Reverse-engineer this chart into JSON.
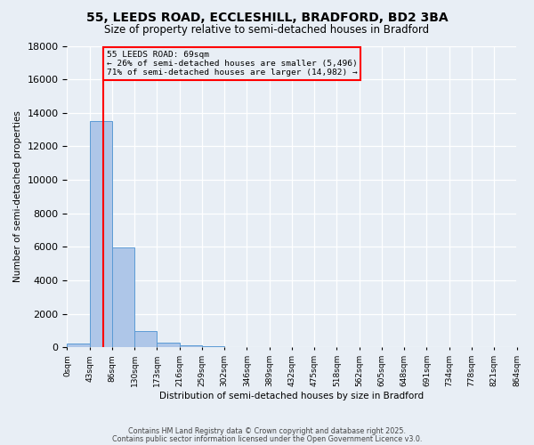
{
  "title": "55, LEEDS ROAD, ECCLESHILL, BRADFORD, BD2 3BA",
  "subtitle": "Size of property relative to semi-detached houses in Bradford",
  "xlabel": "Distribution of semi-detached houses by size in Bradford",
  "ylabel": "Number of semi-detached properties",
  "bin_labels": [
    "0sqm",
    "43sqm",
    "86sqm",
    "130sqm",
    "173sqm",
    "216sqm",
    "259sqm",
    "302sqm",
    "346sqm",
    "389sqm",
    "432sqm",
    "475sqm",
    "518sqm",
    "562sqm",
    "605sqm",
    "648sqm",
    "691sqm",
    "734sqm",
    "778sqm",
    "821sqm",
    "864sqm"
  ],
  "bar_values": [
    250,
    13500,
    5950,
    1000,
    300,
    150,
    80,
    30,
    10,
    5,
    3,
    2,
    1,
    1,
    0,
    0,
    0,
    0,
    0,
    0
  ],
  "bar_color": "#aec6e8",
  "bar_edge_color": "#5b9bd5",
  "red_line_x": 1.605,
  "annotation_line1": "55 LEEDS ROAD: 69sqm",
  "annotation_line2": "← 26% of semi-detached houses are smaller (5,496)",
  "annotation_line3": "71% of semi-detached houses are larger (14,982) →",
  "ylim": [
    0,
    18000
  ],
  "yticks": [
    0,
    2000,
    4000,
    6000,
    8000,
    10000,
    12000,
    14000,
    16000,
    18000
  ],
  "background_color": "#e8eef5",
  "grid_color": "#ffffff",
  "footer1": "Contains HM Land Registry data © Crown copyright and database right 2025.",
  "footer2": "Contains public sector information licensed under the Open Government Licence v3.0."
}
